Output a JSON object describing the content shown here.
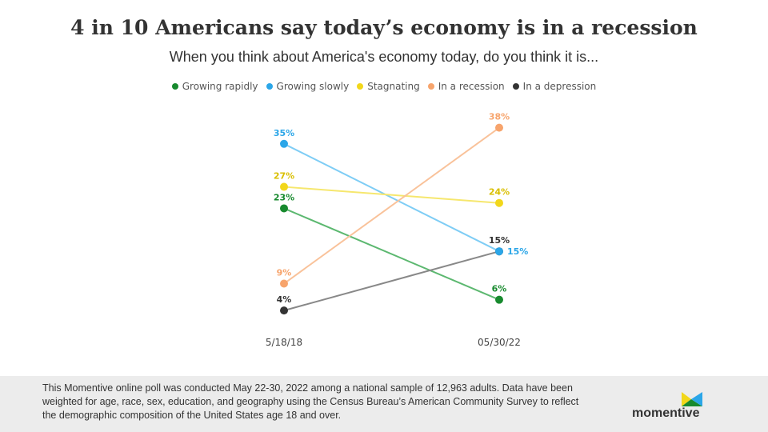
{
  "chart_data": {
    "type": "line",
    "title": "4 in 10 Americans say today’s economy is in a recession",
    "subtitle": "When you think about America's economy today, do you think it is...",
    "categories": [
      "5/18/18",
      "05/30/22"
    ],
    "series": [
      {
        "name": "Growing rapidly",
        "values": [
          23,
          6
        ],
        "labels": [
          "23%",
          "6%"
        ],
        "color": "#188a2e",
        "line_color": "#5cb870"
      },
      {
        "name": "Growing slowly",
        "values": [
          35,
          15
        ],
        "labels": [
          "35%",
          "15%"
        ],
        "color": "#2ba6e8",
        "line_color": "#7fcdf5"
      },
      {
        "name": "Stagnating",
        "values": [
          27,
          24
        ],
        "labels": [
          "27%",
          "24%"
        ],
        "color": "#f2d71a",
        "line_color": "#f6e76e"
      },
      {
        "name": "In a recession",
        "values": [
          9,
          38
        ],
        "labels": [
          "9%",
          "38%"
        ],
        "color": "#f7a46c",
        "line_color": "#f9c29a"
      },
      {
        "name": "In a depression",
        "values": [
          4,
          15
        ],
        "labels": [
          "4%",
          "15%"
        ],
        "color": "#333333",
        "line_color": "#888888"
      }
    ],
    "legend_position": "top-center",
    "grid": false,
    "ylim": [
      0,
      40
    ]
  },
  "footer": {
    "note": "This Momentive online poll was conducted May 22-30, 2022 among a national sample of 12,963 adults. Data have been weighted for age, race, sex, education, and geography using the Census Bureau’s American Community Survey to reflect the demographic composition of the United States age 18 and over.",
    "logo": "momentive"
  }
}
